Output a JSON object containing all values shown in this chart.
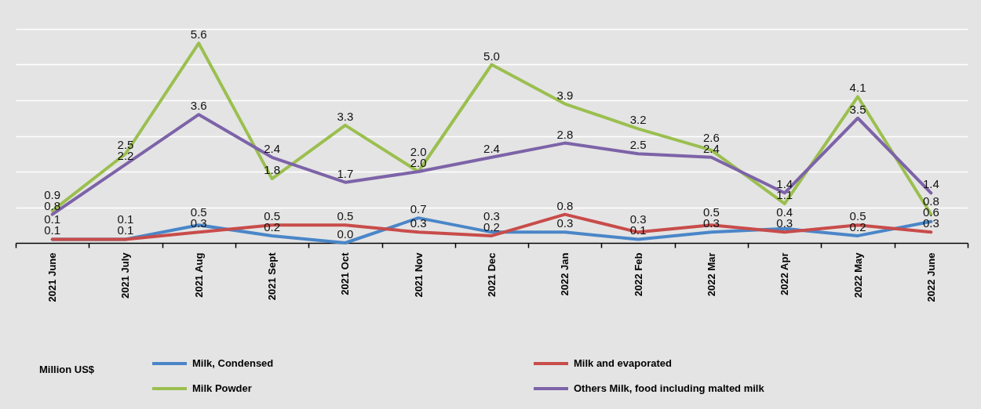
{
  "chart_data": {
    "type": "line",
    "categories": [
      "2021 June",
      "2021 July",
      "2021 Aug",
      "2021 Sept",
      "2021 Oct",
      "2021 Nov",
      "2021 Dec",
      "2022 Jan",
      "2022 Feb",
      "2022 Mar",
      "2022 Apr",
      "2022 May",
      "2022 June"
    ],
    "series": [
      {
        "name": "Milk, Condensed",
        "color": "#4a86c8",
        "values": [
          0.1,
          0.1,
          0.5,
          0.2,
          0.0,
          0.7,
          0.3,
          0.3,
          0.1,
          0.3,
          0.4,
          0.2,
          0.6
        ],
        "value_labels": [
          "0.1",
          "0.1",
          "0.5",
          "0.2",
          "0.0",
          "0.7",
          "0.3",
          "0.3",
          "0.1",
          "0.3",
          "0.4",
          "0.2",
          "0.6"
        ]
      },
      {
        "name": "Milk and evaporated",
        "color": "#c84c4a",
        "values": [
          0.1,
          0.1,
          0.3,
          0.5,
          0.5,
          0.3,
          0.2,
          0.8,
          0.3,
          0.5,
          0.3,
          0.5,
          0.3
        ],
        "value_labels": [
          "0.1",
          "0.1",
          "0.3",
          "0.5",
          "0.5",
          "0.3",
          "0.2",
          "0.8",
          "0.3",
          "0.5",
          "0.3",
          "0.5",
          "0.3"
        ]
      },
      {
        "name": "Milk Powder",
        "color": "#9bbf4f",
        "values": [
          0.9,
          2.5,
          5.6,
          1.8,
          3.3,
          2.0,
          5.0,
          3.9,
          3.2,
          2.6,
          1.1,
          4.1,
          0.8
        ],
        "value_labels": [
          "0.9",
          "2.5",
          "5.6",
          "1.8",
          "3.3",
          "2.0",
          "5.0",
          "3.9",
          "3.2",
          "2.6",
          "1.1",
          "4.1",
          "0.8"
        ]
      },
      {
        "name": "Others Milk, food including malted milk",
        "color": "#7d63a8",
        "values": [
          0.8,
          2.2,
          3.6,
          2.4,
          1.7,
          2.0,
          2.4,
          2.8,
          2.5,
          2.4,
          1.4,
          3.5,
          1.4
        ],
        "value_labels": [
          "0.8",
          "2.2",
          "3.6",
          "2.4",
          "1.7",
          "2.0",
          "2.4",
          "2.8",
          "2.5",
          "2.4",
          "1.4",
          "3.5",
          "1.4"
        ]
      }
    ],
    "legend_title": "Million US$",
    "legend": "bottom",
    "ylim": [
      0,
      6
    ],
    "yticks": [
      {
        "value": 0,
        "label": null
      },
      {
        "value": 1,
        "label": null
      },
      {
        "value": 2,
        "label": null
      },
      {
        "value": 3,
        "label": null
      },
      {
        "value": 4,
        "label": null
      },
      {
        "value": 5,
        "label": null
      },
      {
        "value": 6,
        "label": null
      }
    ],
    "grid": "y",
    "tick_labels": "x"
  }
}
